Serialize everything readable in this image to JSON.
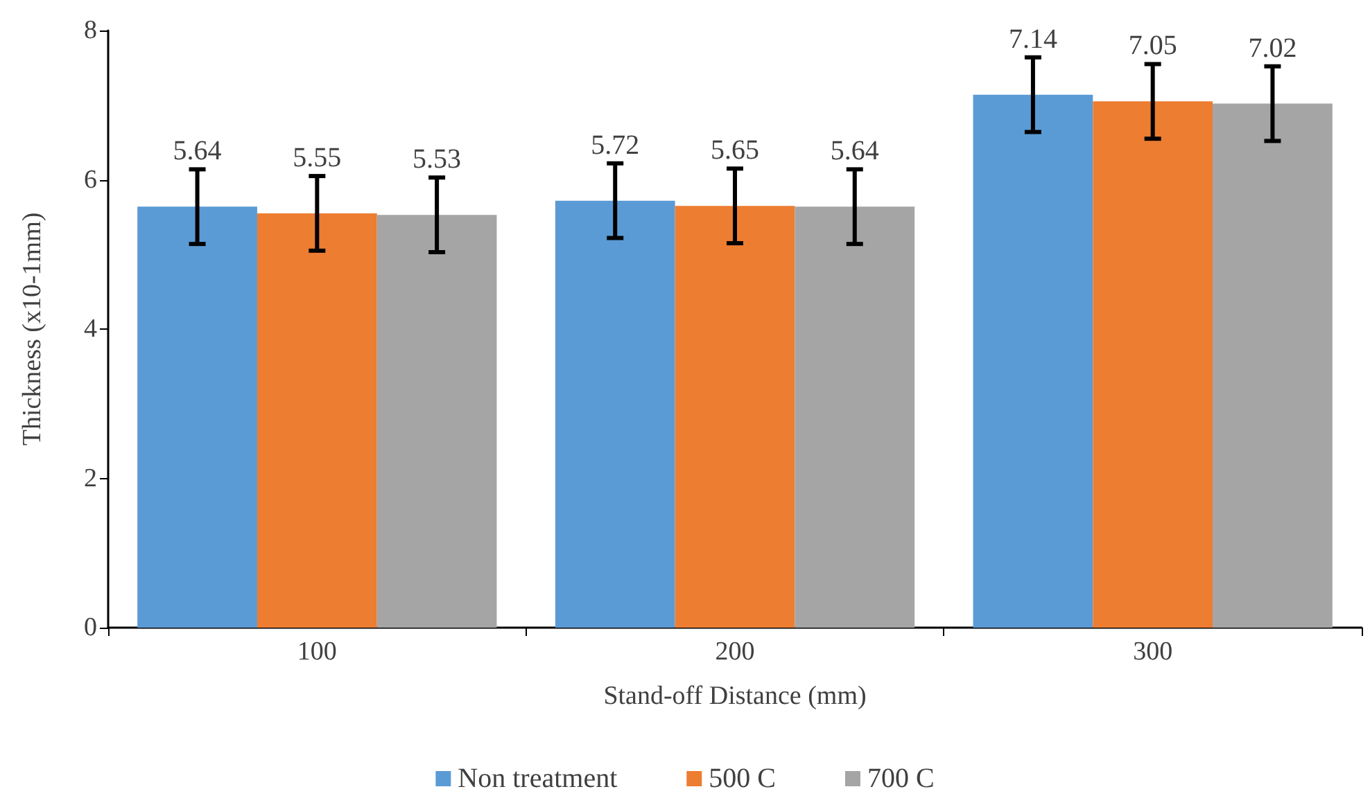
{
  "chart_data": {
    "type": "bar",
    "xlabel": "Stand-off Distance (mm)",
    "ylabel": "Thickness (x10-1mm)",
    "categories": [
      "100",
      "200",
      "300"
    ],
    "series": [
      {
        "name": "Non treatment",
        "color": "#5b9bd5",
        "values": [
          5.64,
          5.72,
          7.14
        ],
        "errors": [
          0.5,
          0.5,
          0.5
        ]
      },
      {
        "name": "500 C",
        "color": "#ed7d31",
        "values": [
          5.55,
          5.65,
          7.05
        ],
        "errors": [
          0.5,
          0.5,
          0.5
        ]
      },
      {
        "name": "700 C",
        "color": "#a5a5a5",
        "values": [
          5.53,
          5.64,
          7.02
        ],
        "errors": [
          0.5,
          0.5,
          0.5
        ]
      }
    ],
    "ylim": [
      0,
      8
    ],
    "yticks": [
      0,
      2,
      4,
      6,
      8
    ],
    "grid": false,
    "legend": "bottom",
    "data_labels": true
  }
}
